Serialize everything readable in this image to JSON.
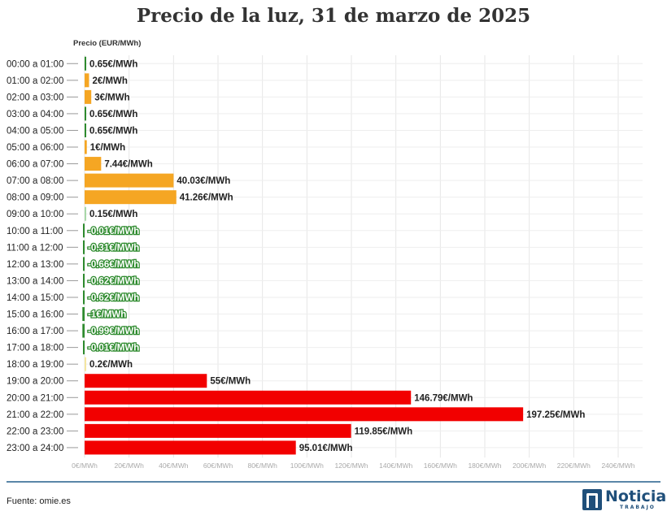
{
  "title": "Precio de la luz, 31 de marzo de 2025",
  "source": "Fuente: omie.es",
  "logo": {
    "main": "Noticias",
    "sub": "TRABAJO"
  },
  "colors": {
    "positive_low": "#f5a623",
    "positive_zero": "#2e8b2e",
    "high": "#f20000",
    "negative_text": "#2e8b2e",
    "grid": "#e6e6e6",
    "brand": "#1f4f7a"
  },
  "chart_data": {
    "type": "bar",
    "orientation": "horizontal",
    "ylabel": "Precio (EUR/MWh)",
    "unit_suffix": "€/MWh",
    "xlim": [
      0,
      240
    ],
    "x_ticks": [
      0,
      20,
      40,
      60,
      80,
      100,
      120,
      140,
      160,
      180,
      200,
      220,
      240
    ],
    "x_tick_labels": [
      "0€/MWh",
      "20€/MWh",
      "40€/MWh",
      "60€/MWh",
      "80€/MWh",
      "100€/MWh",
      "120€/MWh",
      "140€/MWh",
      "160€/MWh",
      "180€/MWh",
      "200€/MWh",
      "220€/MWh",
      "240€/MWh"
    ],
    "grid": true,
    "categories": [
      "00:00 a 01:00",
      "01:00 a 02:00",
      "02:00 a 03:00",
      "03:00 a 04:00",
      "04:00 a 05:00",
      "05:00 a 06:00",
      "06:00 a 07:00",
      "07:00 a 08:00",
      "08:00 a 09:00",
      "09:00 a 10:00",
      "10:00 a 11:00",
      "11:00 a 12:00",
      "12:00 a 13:00",
      "13:00 a 14:00",
      "14:00 a 15:00",
      "15:00 a 16:00",
      "16:00 a 17:00",
      "17:00 a 18:00",
      "18:00 a 19:00",
      "19:00 a 20:00",
      "20:00 a 21:00",
      "21:00 a 22:00",
      "22:00 a 23:00",
      "23:00 a 24:00"
    ],
    "values": [
      0.65,
      2,
      3,
      0.65,
      0.65,
      1,
      7.44,
      40.03,
      41.26,
      0.15,
      -0.01,
      -0.31,
      -0.66,
      -0.62,
      -0.62,
      -1,
      -0.99,
      -0.01,
      0.2,
      55,
      146.79,
      197.25,
      119.85,
      95.01
    ],
    "value_labels": [
      "0.65€/MWh",
      "2€/MWh",
      "3€/MWh",
      "0.65€/MWh",
      "0.65€/MWh",
      "1€/MWh",
      "7.44€/MWh",
      "40.03€/MWh",
      "41.26€/MWh",
      "0.15€/MWh",
      "-0.01€/MWh",
      "-0.31€/MWh",
      "-0.66€/MWh",
      "-0.62€/MWh",
      "-0.62€/MWh",
      "-1€/MWh",
      "-0.99€/MWh",
      "-0.01€/MWh",
      "0.2€/MWh",
      "55€/MWh",
      "146.79€/MWh",
      "197.25€/MWh",
      "119.85€/MWh",
      "95.01€/MWh"
    ],
    "bar_colors": [
      "#2e8b2e",
      "#f5a623",
      "#f5a623",
      "#2e8b2e",
      "#2e8b2e",
      "#f5a623",
      "#f5a623",
      "#f5a623",
      "#f5a623",
      "#a8d8a8",
      "#2e8b2e",
      "#2e8b2e",
      "#2e8b2e",
      "#2e8b2e",
      "#2e8b2e",
      "#2e8b2e",
      "#2e8b2e",
      "#2e8b2e",
      "#f5e6a0",
      "#f20000",
      "#f20000",
      "#f20000",
      "#f20000",
      "#f20000"
    ]
  }
}
